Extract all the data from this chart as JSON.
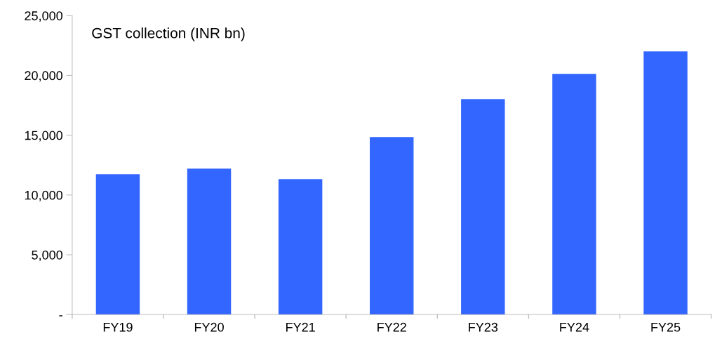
{
  "chart_data": {
    "type": "bar",
    "annotations": [
      "GST collection (INR bn)"
    ],
    "categories": [
      "FY19",
      "FY20",
      "FY21",
      "FY22",
      "FY23",
      "FY24",
      "FY25"
    ],
    "values": [
      11740,
      12200,
      11330,
      14850,
      18020,
      20130,
      22010
    ],
    "color": "#3366ff",
    "ylim": [
      0,
      25000
    ],
    "yticks": [
      {
        "value": 0,
        "label": "-"
      },
      {
        "value": 5000,
        "label": "5,000"
      },
      {
        "value": 10000,
        "label": "10,000"
      },
      {
        "value": 15000,
        "label": "15,000"
      },
      {
        "value": 20000,
        "label": "20,000"
      },
      {
        "value": 25000,
        "label": "25,000"
      }
    ],
    "grid": false,
    "legend": false
  }
}
